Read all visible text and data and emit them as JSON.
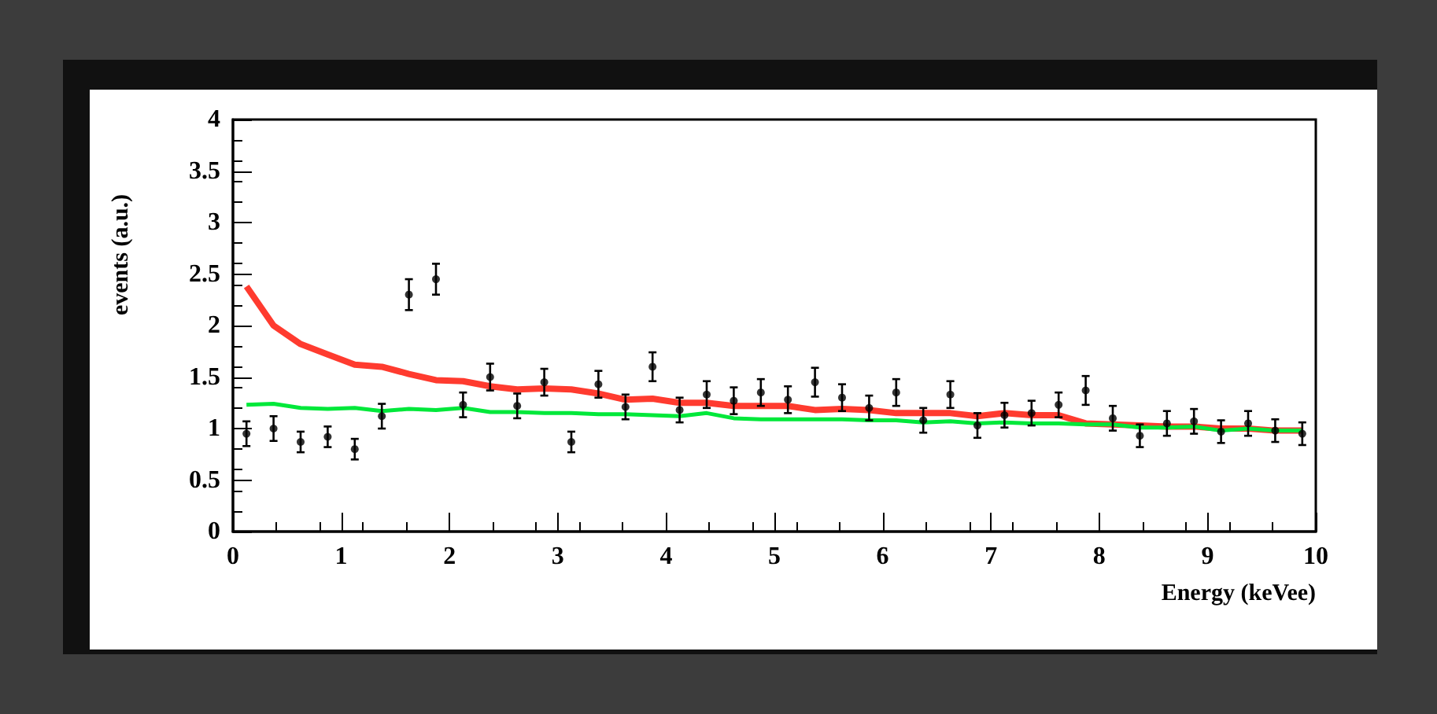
{
  "chart_data": {
    "type": "scatter",
    "xlabel": "Energy (keVee)",
    "ylabel": "events (a.u.)",
    "x": [
      0.125,
      0.375,
      0.625,
      0.875,
      1.125,
      1.375,
      1.625,
      1.875,
      2.125,
      2.375,
      2.625,
      2.875,
      3.125,
      3.375,
      3.625,
      3.875,
      4.125,
      4.375,
      4.625,
      4.875,
      5.125,
      5.375,
      5.625,
      5.875,
      6.125,
      6.375,
      6.625,
      6.875,
      7.125,
      7.375,
      7.625,
      7.875,
      8.125,
      8.375,
      8.625,
      8.875,
      9.125,
      9.375,
      9.625,
      9.875
    ],
    "series": [
      {
        "type": "line",
        "color": "#ff3b2f",
        "values": [
          2.38,
          2.0,
          1.82,
          1.72,
          1.62,
          1.6,
          1.53,
          1.47,
          1.46,
          1.41,
          1.38,
          1.39,
          1.38,
          1.34,
          1.28,
          1.29,
          1.25,
          1.25,
          1.22,
          1.22,
          1.22,
          1.18,
          1.19,
          1.18,
          1.15,
          1.15,
          1.15,
          1.12,
          1.15,
          1.13,
          1.13,
          1.05,
          1.04,
          1.03,
          1.02,
          1.02,
          1.0,
          1.0,
          0.98,
          0.98
        ]
      },
      {
        "type": "line",
        "color": "#00e83a",
        "values": [
          1.23,
          1.24,
          1.2,
          1.19,
          1.2,
          1.17,
          1.19,
          1.18,
          1.2,
          1.16,
          1.16,
          1.15,
          1.15,
          1.14,
          1.14,
          1.13,
          1.12,
          1.15,
          1.1,
          1.09,
          1.09,
          1.09,
          1.09,
          1.08,
          1.08,
          1.06,
          1.07,
          1.05,
          1.06,
          1.05,
          1.05,
          1.04,
          1.04,
          1.01,
          1.01,
          1.02,
          0.98,
          1.0,
          0.98,
          0.98
        ]
      },
      {
        "color": "#000000",
        "values": [
          0.95,
          1.0,
          0.87,
          0.92,
          0.8,
          1.12,
          2.3,
          2.45,
          1.23,
          1.5,
          1.22,
          1.45,
          0.87,
          1.43,
          1.21,
          1.6,
          1.18,
          1.33,
          1.27,
          1.35,
          1.28,
          1.45,
          1.3,
          1.2,
          1.35,
          1.08,
          1.33,
          1.03,
          1.13,
          1.15,
          1.23,
          1.37,
          1.1,
          0.93,
          1.05,
          1.07,
          0.97,
          1.05,
          0.98,
          0.95
        ],
        "errors": [
          0.12,
          0.12,
          0.1,
          0.1,
          0.1,
          0.12,
          0.15,
          0.15,
          0.12,
          0.13,
          0.12,
          0.13,
          0.1,
          0.13,
          0.12,
          0.14,
          0.12,
          0.13,
          0.13,
          0.13,
          0.13,
          0.14,
          0.13,
          0.12,
          0.13,
          0.12,
          0.13,
          0.12,
          0.12,
          0.12,
          0.12,
          0.14,
          0.12,
          0.11,
          0.12,
          0.12,
          0.11,
          0.12,
          0.11,
          0.11
        ]
      }
    ],
    "line_style": "solid",
    "grid": false,
    "xlim": [
      0,
      10
    ],
    "xticks": [
      0,
      1,
      2,
      3,
      4,
      5,
      6,
      7,
      8,
      9,
      10
    ],
    "ylim": [
      0,
      4
    ],
    "yticks": [
      0,
      0.5,
      1,
      1.5,
      2,
      2.5,
      3,
      3.5,
      4
    ]
  }
}
